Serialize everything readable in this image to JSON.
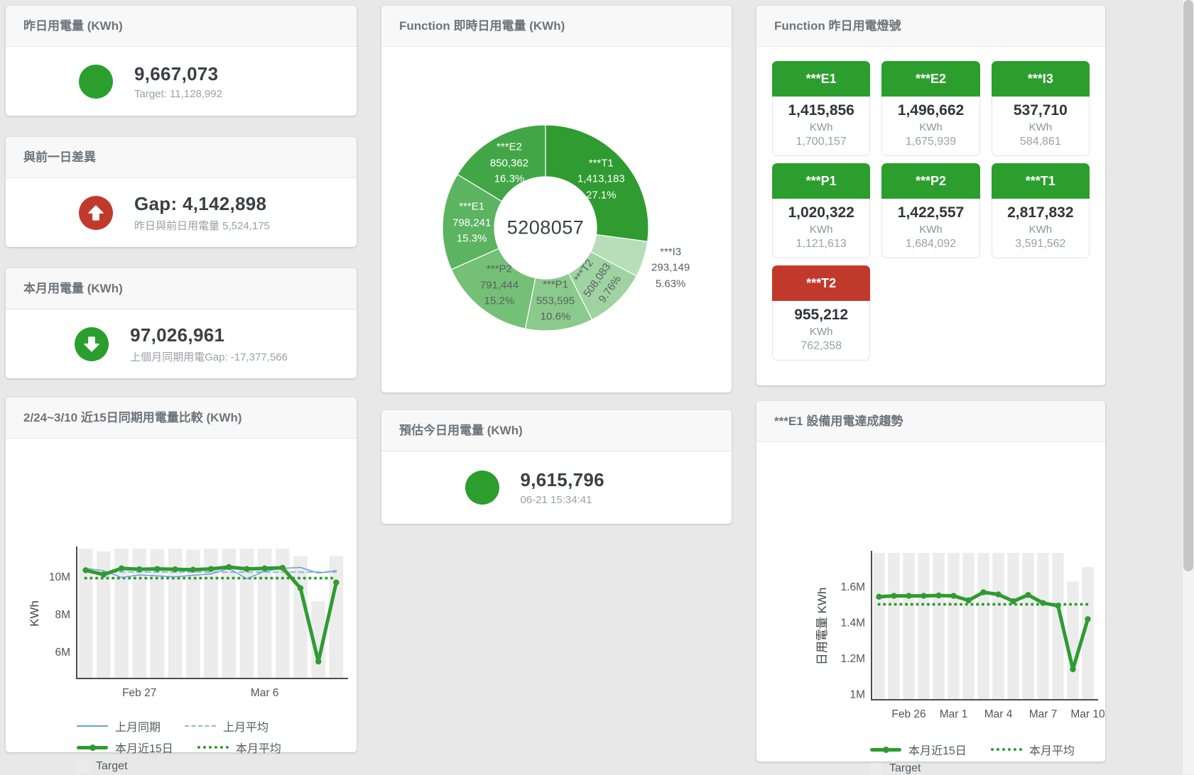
{
  "colors": {
    "green": "#2b9e2e",
    "red": "#c1392b",
    "chart_green": "#2f9b30",
    "chart_blue": "#6b9fd4",
    "chart_blue_light": "#8ab9e0",
    "bar_gray": "#ececec"
  },
  "cards": {
    "yesterday": {
      "title": "昨日用電量 (KWh)",
      "value": "9,667,073",
      "subtext": "Target: 11,128,992"
    },
    "gap_prev_day": {
      "title": "與前一日差異",
      "value": "Gap: 4,142,898",
      "subtext": "昨日與前日用電量 5,524,175"
    },
    "month": {
      "title": "本月用電量 (KWh)",
      "value": "97,026,961",
      "subtext": "上個月同期用電Gap: -17,377,566"
    },
    "realtime_donut": {
      "title": "Function 即時日用電量 (KWh)"
    },
    "estimate_today": {
      "title": "預估今日用電量 (KWh)",
      "value": "9,615,796",
      "subtext": "06-21 15:34:41"
    },
    "lights": {
      "title": "Function 昨日用電燈號",
      "tiles": [
        {
          "name": "***E1",
          "value": "1,415,856",
          "unit": "KWh",
          "target": "1,700,157",
          "status": "green"
        },
        {
          "name": "***E2",
          "value": "1,496,662",
          "unit": "KWh",
          "target": "1,675,939",
          "status": "green"
        },
        {
          "name": "***I3",
          "value": "537,710",
          "unit": "KWh",
          "target": "584,861",
          "status": "green"
        },
        {
          "name": "***P1",
          "value": "1,020,322",
          "unit": "KWh",
          "target": "1,121,613",
          "status": "green"
        },
        {
          "name": "***P2",
          "value": "1,422,557",
          "unit": "KWh",
          "target": "1,684,092",
          "status": "green"
        },
        {
          "name": "***T1",
          "value": "2,817,832",
          "unit": "KWh",
          "target": "3,591,562",
          "status": "green"
        },
        {
          "name": "***T2",
          "value": "955,212",
          "unit": "KWh",
          "target": "762,358",
          "status": "red"
        }
      ]
    },
    "compare_chart": {
      "title": "2/24~3/10 近15日同期用電量比較 (KWh)"
    },
    "trend_chart": {
      "title": "***E1 設備用電達成趨勢"
    }
  },
  "chart_data": [
    {
      "type": "pie",
      "title": "Function 即時日用電量 (KWh)",
      "center_total": "5208057",
      "slices": [
        {
          "name": "***T1",
          "value": 1413183,
          "display": "1,413,183",
          "pct": 27.1,
          "pct_label": "27.1%",
          "color": "#2f9b30",
          "label_color": "#ffffff"
        },
        {
          "name": "***I3",
          "value": 293149,
          "display": "293,149",
          "pct": 5.63,
          "pct_label": "5.63%",
          "color": "#b7deb8",
          "label_color": "#5a6065",
          "outside": true
        },
        {
          "name": "***T2",
          "value": 508083,
          "display": "508,083",
          "pct": 9.76,
          "pct_label": "9.76%",
          "color": "#9fd3a1",
          "label_color": "#5a6065",
          "rotate": -55
        },
        {
          "name": "***P1",
          "value": 553595,
          "display": "553,595",
          "pct": 10.6,
          "pct_label": "10.6%",
          "color": "#8aca8c",
          "label_color": "#5a6065"
        },
        {
          "name": "***P2",
          "value": 791444,
          "display": "791,444",
          "pct": 15.2,
          "pct_label": "15.2%",
          "color": "#74c076",
          "label_color": "#5a6065"
        },
        {
          "name": "***E1",
          "value": 798241,
          "display": "798,241",
          "pct": 15.3,
          "pct_label": "15.3%",
          "color": "#5cb360",
          "label_color": "#ffffff"
        },
        {
          "name": "***E2",
          "value": 850362,
          "display": "850,362",
          "pct": 16.3,
          "pct_label": "16.3%",
          "color": "#42a647",
          "label_color": "#ffffff"
        }
      ]
    },
    {
      "type": "line",
      "title": "2/24~3/10 近15日同期用電量比較 (KWh)",
      "ylabel": "KWh",
      "ylim": [
        4.6,
        11.5
      ],
      "n": 15,
      "yticks": [
        {
          "v": 6,
          "label": "6M"
        },
        {
          "v": 8,
          "label": "8M"
        },
        {
          "v": 10,
          "label": "10M"
        }
      ],
      "xticks": [
        {
          "i": 3,
          "label": "Feb 27"
        },
        {
          "i": 10,
          "label": "Mar 6"
        }
      ],
      "series": [
        {
          "name": "Target",
          "kind": "bar",
          "color": "#ececec",
          "values": [
            11.5,
            11.35,
            11.5,
            11.5,
            11.48,
            11.5,
            11.45,
            11.5,
            11.5,
            11.5,
            11.5,
            11.5,
            11.1,
            8.7,
            11.1
          ]
        },
        {
          "name": "上月平均",
          "kind": "line",
          "style": "dashed",
          "width": 2,
          "color": "#8ab9e0",
          "const": 10.25
        },
        {
          "name": "本月平均",
          "kind": "line",
          "style": "dotted",
          "width": 4,
          "color": "#2f9b30",
          "const": 9.93
        },
        {
          "name": "上月同期",
          "kind": "line",
          "style": "solid",
          "width": 1.5,
          "color": "#6b9fd4",
          "values": [
            10.45,
            10.33,
            9.97,
            10.1,
            10.05,
            10.0,
            10.08,
            10.15,
            10.45,
            9.9,
            10.3,
            10.45,
            10.5,
            10.2,
            10.33
          ]
        },
        {
          "name": "本月近15日",
          "kind": "line",
          "style": "solid",
          "width": 5,
          "markers": true,
          "color": "#2f9b30",
          "values": [
            10.35,
            10.12,
            10.45,
            10.4,
            10.42,
            10.4,
            10.38,
            10.42,
            10.52,
            10.42,
            10.45,
            10.48,
            9.4,
            5.5,
            9.7
          ]
        }
      ],
      "legend": [
        [
          {
            "swatch": "blue-line",
            "label": "上月同期"
          },
          {
            "swatch": "blue-dash",
            "label": "上月平均"
          }
        ],
        [
          {
            "swatch": "green-line",
            "label": "本月近15日"
          },
          {
            "swatch": "green-dots",
            "label": "本月平均"
          }
        ],
        [
          {
            "swatch": "gray-box",
            "label": "Target"
          }
        ]
      ]
    },
    {
      "type": "line",
      "title": "***E1 設備用電達成趨勢",
      "ylabel": "日用電量 KWh",
      "ylim": [
        0.97,
        1.79
      ],
      "n": 15,
      "yticks": [
        {
          "v": 1,
          "label": "1M"
        },
        {
          "v": 1.2,
          "label": "1.2M"
        },
        {
          "v": 1.4,
          "label": "1.4M"
        },
        {
          "v": 1.6,
          "label": "1.6M"
        }
      ],
      "xticks": [
        {
          "i": 2,
          "label": "Feb 26"
        },
        {
          "i": 5,
          "label": "Mar 1"
        },
        {
          "i": 8,
          "label": "Mar 4"
        },
        {
          "i": 11,
          "label": "Mar 7"
        },
        {
          "i": 14,
          "label": "Mar 10"
        }
      ],
      "series": [
        {
          "name": "Target",
          "kind": "bar",
          "color": "#ececec",
          "values": [
            1.79,
            1.79,
            1.79,
            1.79,
            1.79,
            1.79,
            1.79,
            1.79,
            1.79,
            1.79,
            1.79,
            1.79,
            1.79,
            1.63,
            1.71
          ]
        },
        {
          "name": "本月平均",
          "kind": "line",
          "style": "dotted",
          "width": 4,
          "color": "#2f9b30",
          "const": 1.503
        },
        {
          "name": "本月近15日",
          "kind": "line",
          "style": "solid",
          "width": 5,
          "markers": true,
          "color": "#2f9b30",
          "values": [
            1.545,
            1.55,
            1.55,
            1.55,
            1.552,
            1.55,
            1.525,
            1.57,
            1.558,
            1.52,
            1.555,
            1.51,
            1.495,
            1.14,
            1.42
          ]
        }
      ],
      "legend": [
        [
          {
            "swatch": "green-line",
            "label": "本月近15日"
          },
          {
            "swatch": "green-dots",
            "label": "本月平均"
          }
        ],
        [
          {
            "swatch": "gray-box",
            "label": "Target"
          }
        ]
      ]
    }
  ]
}
